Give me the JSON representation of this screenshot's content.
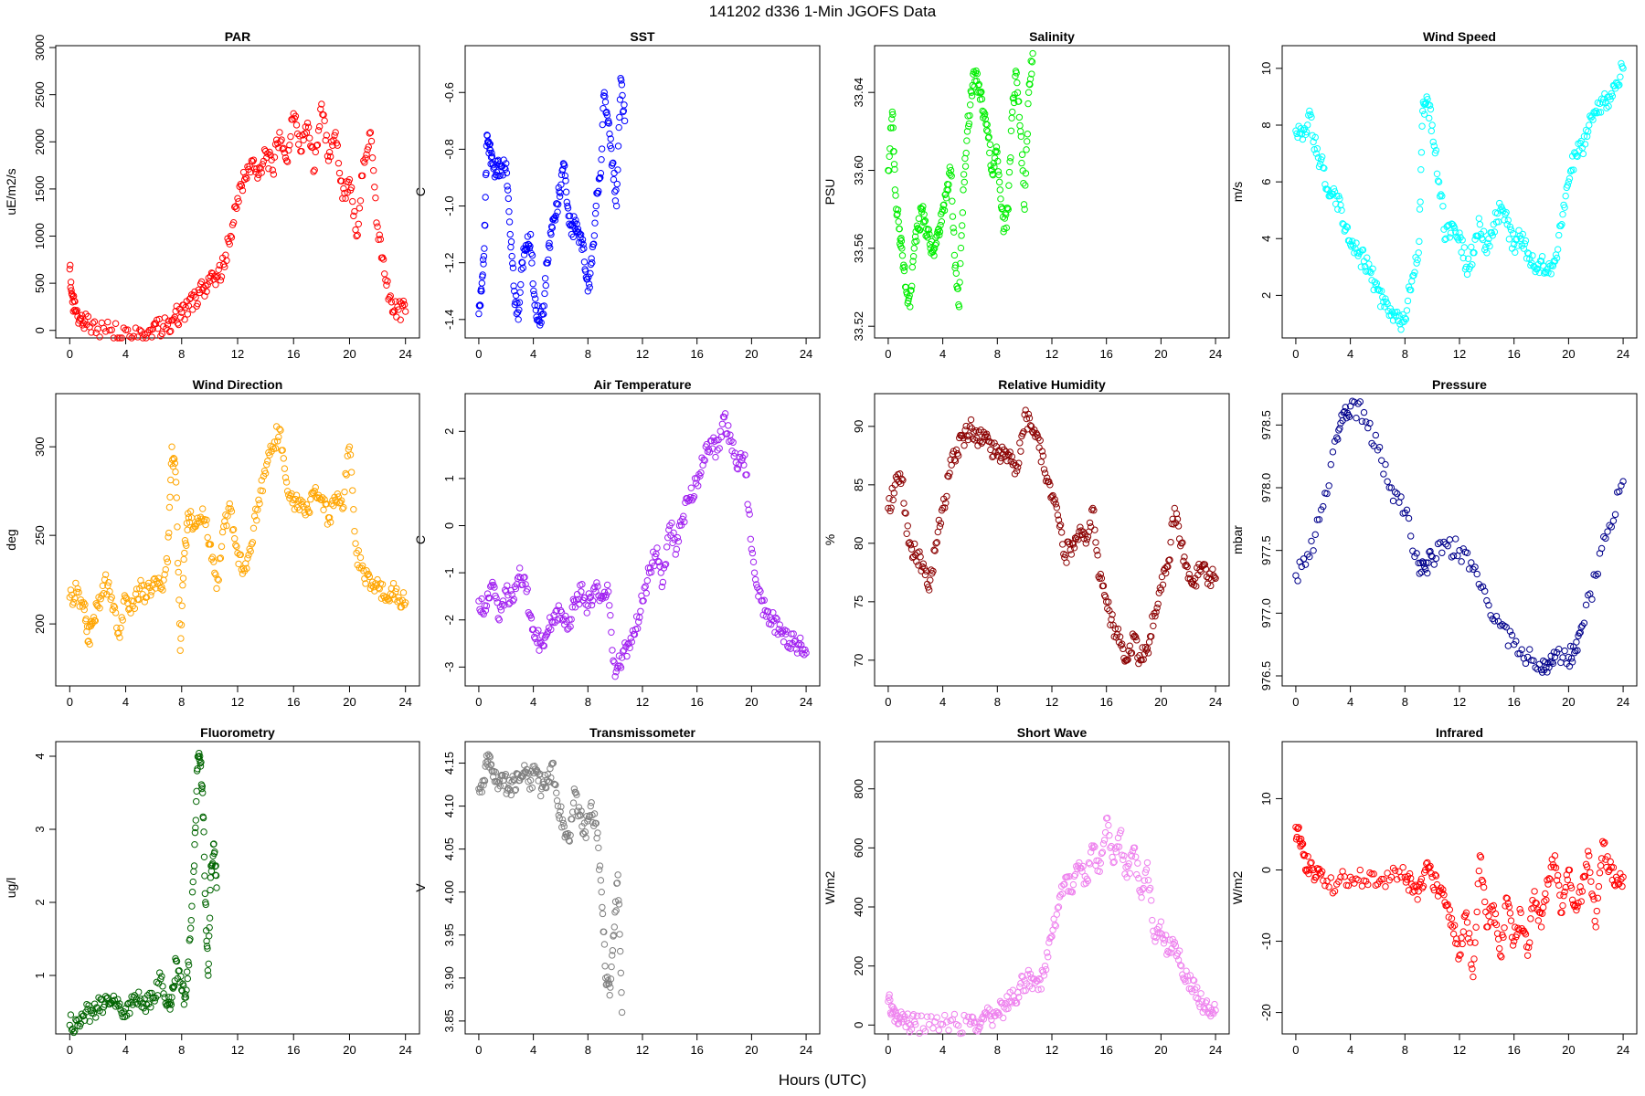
{
  "figure": {
    "title": "141202   d336   1-Min  JGOFS Data",
    "xlabel": "Hours (UTC)"
  },
  "chart_data": [
    {
      "type": "scatter",
      "title": "PAR",
      "ylabel": "uE/m2/s",
      "color": "#ff0000",
      "xlim": [
        -1,
        25
      ],
      "ylim": [
        -80,
        3020
      ],
      "xticks": [
        "0",
        "4",
        "8",
        "12",
        "16",
        "20",
        "24"
      ],
      "yticks": [
        "0",
        "500",
        "1000",
        "1500",
        "2000",
        "2500",
        "3000"
      ],
      "x": [
        0,
        0.2,
        0.4,
        0.8,
        1.2,
        2,
        3,
        4,
        5,
        5.8,
        6.3,
        7,
        7.5,
        8,
        8.5,
        9,
        9.5,
        10,
        10.5,
        11,
        11.5,
        12,
        12.5,
        13,
        13.5,
        14,
        14.5,
        15,
        15.5,
        16,
        16.5,
        17,
        17.5,
        18,
        18.5,
        19,
        19.5,
        20,
        20.5,
        21,
        21.5,
        22,
        22.5,
        23,
        23.5,
        24
      ],
      "y": [
        650,
        300,
        200,
        120,
        60,
        15,
        5,
        5,
        5,
        5,
        20,
        60,
        140,
        190,
        260,
        350,
        430,
        520,
        560,
        700,
        1000,
        1400,
        1600,
        1800,
        1650,
        1900,
        1700,
        2100,
        1800,
        2300,
        1900,
        2200,
        1700,
        2400,
        1800,
        2100,
        1400,
        1600,
        1000,
        1800,
        2100,
        1100,
        600,
        300,
        220,
        200
      ]
    },
    {
      "type": "scatter",
      "title": "SST",
      "ylabel": "C",
      "color": "#0000ff",
      "xlim": [
        -1,
        25
      ],
      "ylim": [
        -1.465,
        -0.435
      ],
      "xticks": [
        "0",
        "4",
        "8",
        "12",
        "16",
        "20",
        "24"
      ],
      "yticks": [
        "-1.4",
        "-1.2",
        "-1.0",
        "-0.8",
        "-0.6"
      ],
      "x": [
        0,
        0.2,
        0.4,
        0.6,
        0.8,
        1,
        1.3,
        1.6,
        2,
        2.3,
        2.6,
        2.9,
        3.2,
        3.5,
        3.8,
        4.1,
        4.4,
        4.7,
        5,
        5.3,
        5.6,
        5.9,
        6.2,
        6.5,
        6.8,
        7.1,
        7.4,
        7.7,
        8,
        8.3,
        8.6,
        8.9,
        9.2,
        9.5,
        9.8,
        10.1,
        10.4,
        10.7
      ],
      "y": [
        -1.38,
        -1.3,
        -1.15,
        -0.75,
        -0.8,
        -0.85,
        -0.88,
        -0.86,
        -0.85,
        -1.1,
        -1.3,
        -1.4,
        -1.2,
        -1.15,
        -1.1,
        -1.35,
        -1.4,
        -1.38,
        -1.2,
        -1.1,
        -1.05,
        -0.95,
        -0.85,
        -1.0,
        -1.1,
        -1.05,
        -1.1,
        -1.15,
        -1.3,
        -1.2,
        -1.0,
        -0.9,
        -0.6,
        -0.7,
        -0.85,
        -1.0,
        -0.55,
        -0.7
      ]
    },
    {
      "type": "scatter",
      "title": "Salinity",
      "ylabel": "PSU",
      "color": "#00ee00",
      "xlim": [
        -1,
        25
      ],
      "ylim": [
        33.514,
        33.664
      ],
      "xticks": [
        "0",
        "4",
        "8",
        "12",
        "16",
        "20",
        "24"
      ],
      "yticks": [
        "33.52",
        "33.56",
        "33.60",
        "33.64"
      ],
      "x": [
        0,
        0.3,
        0.5,
        0.8,
        1.0,
        1.3,
        1.6,
        1.9,
        2.2,
        2.5,
        2.8,
        3.1,
        3.4,
        3.7,
        4.0,
        4.3,
        4.6,
        4.9,
        5.2,
        5.5,
        5.8,
        6.1,
        6.4,
        6.7,
        7.0,
        7.3,
        7.6,
        7.9,
        8.2,
        8.5,
        8.8,
        9.1,
        9.4,
        9.7,
        10.0,
        10.3,
        10.6
      ],
      "y": [
        33.6,
        33.63,
        33.59,
        33.57,
        33.56,
        33.54,
        33.53,
        33.56,
        33.57,
        33.58,
        33.57,
        33.56,
        33.56,
        33.57,
        33.58,
        33.59,
        33.6,
        33.55,
        33.53,
        33.59,
        33.62,
        33.64,
        33.65,
        33.64,
        33.63,
        33.62,
        33.6,
        33.61,
        33.59,
        33.57,
        33.58,
        33.63,
        33.65,
        33.62,
        33.58,
        33.64,
        33.66
      ]
    },
    {
      "type": "scatter",
      "title": "Wind Speed",
      "ylabel": "m/s",
      "color": "#00ffff",
      "xlim": [
        -1,
        25
      ],
      "ylim": [
        0.5,
        10.8
      ],
      "xticks": [
        "0",
        "4",
        "8",
        "12",
        "16",
        "20",
        "24"
      ],
      "yticks": [
        "2",
        "4",
        "6",
        "8",
        "10"
      ],
      "x": [
        0,
        0.5,
        1,
        1.5,
        2,
        2.5,
        3,
        3.5,
        4,
        4.5,
        5,
        5.5,
        6,
        6.5,
        7,
        7.5,
        8,
        8.5,
        9,
        9.3,
        9.6,
        10,
        10.5,
        11,
        11.5,
        12,
        12.5,
        13,
        13.5,
        14,
        14.5,
        15,
        15.5,
        16,
        16.5,
        17,
        17.5,
        18,
        18.5,
        19,
        19.5,
        20,
        20.5,
        21,
        21.5,
        22,
        22.5,
        23,
        23.5,
        24
      ],
      "y": [
        7.8,
        7.5,
        8.5,
        7,
        6.5,
        5.5,
        5.5,
        4.5,
        3.8,
        3.5,
        3.2,
        2.8,
        2.2,
        1.6,
        1.3,
        1.1,
        1.2,
        2.5,
        3.5,
        8.5,
        9,
        8,
        6,
        4,
        4.5,
        4.2,
        3,
        3.5,
        4.5,
        3.5,
        4.5,
        5,
        4.5,
        3.8,
        4,
        3.5,
        3,
        3.2,
        2.8,
        3.2,
        4.5,
        6,
        7,
        7.2,
        8,
        8.5,
        8.8,
        9,
        9.5,
        10
      ]
    },
    {
      "type": "scatter",
      "title": "Wind Direction",
      "ylabel": "deg",
      "color": "#ffa500",
      "xlim": [
        -1,
        25
      ],
      "ylim": [
        165,
        330
      ],
      "xticks": [
        "0",
        "4",
        "8",
        "12",
        "16",
        "20",
        "24"
      ],
      "yticks": [
        "200",
        "250",
        "300"
      ],
      "x": [
        0,
        0.5,
        1,
        1.3,
        1.6,
        2,
        2.5,
        3,
        3.5,
        4,
        4.5,
        5,
        5.5,
        6,
        6.5,
        7,
        7.3,
        7.6,
        7.9,
        8.2,
        8.5,
        9,
        9.5,
        10,
        10.5,
        11,
        11.5,
        12,
        12.5,
        13,
        13.5,
        14,
        14.5,
        15,
        15.5,
        16,
        16.5,
        17,
        17.5,
        18,
        18.5,
        19,
        19.5,
        20,
        20.5,
        21,
        21.5,
        22,
        22.5,
        23,
        23.5,
        24
      ],
      "y": [
        215,
        218,
        212,
        190,
        200,
        210,
        225,
        215,
        195,
        215,
        210,
        220,
        215,
        225,
        220,
        235,
        300,
        280,
        185,
        240,
        260,
        255,
        265,
        245,
        220,
        255,
        265,
        240,
        230,
        245,
        270,
        285,
        300,
        310,
        280,
        270,
        270,
        265,
        275,
        270,
        260,
        270,
        265,
        300,
        240,
        230,
        220,
        225,
        215,
        220,
        215,
        212
      ]
    },
    {
      "type": "scatter",
      "title": "Air Temperature",
      "ylabel": "C",
      "color": "#a020f0",
      "xlim": [
        -1,
        25
      ],
      "ylim": [
        -3.4,
        2.8
      ],
      "xticks": [
        "0",
        "4",
        "8",
        "12",
        "16",
        "20",
        "24"
      ],
      "yticks": [
        "-3",
        "-2",
        "-1",
        "0",
        "1",
        "2"
      ],
      "x": [
        0,
        0.5,
        1,
        1.5,
        2,
        2.5,
        3,
        3.5,
        4,
        4.5,
        5,
        5.5,
        6,
        6.5,
        7,
        7.5,
        8,
        8.5,
        9,
        9.5,
        10,
        10.5,
        11,
        11.5,
        12,
        12.5,
        13,
        13.5,
        14,
        14.5,
        15,
        15.5,
        16,
        16.5,
        17,
        17.5,
        18,
        18.5,
        19,
        19.5,
        20,
        20.5,
        21,
        21.5,
        22,
        22.5,
        23,
        23.5,
        24
      ],
      "y": [
        -1.6,
        -1.8,
        -1.2,
        -2,
        -1.4,
        -1.6,
        -0.9,
        -1.4,
        -2.2,
        -2.5,
        -2.3,
        -1.9,
        -1.8,
        -2.2,
        -1.6,
        -1.4,
        -1.7,
        -1.3,
        -1.5,
        -1.4,
        -3.2,
        -2.8,
        -2.5,
        -2.2,
        -1.6,
        -1.0,
        -0.6,
        -1.2,
        0.0,
        -0.5,
        0.2,
        0.6,
        1.0,
        1.4,
        1.8,
        1.6,
        2.3,
        1.8,
        1.2,
        1.5,
        -0.5,
        -1.5,
        -1.8,
        -2.0,
        -2.2,
        -2.3,
        -2.5,
        -2.5,
        -2.7
      ]
    },
    {
      "type": "scatter",
      "title": "Relative Humidity",
      "ylabel": "%",
      "color": "#8b0000",
      "xlim": [
        -1,
        25
      ],
      "ylim": [
        67.8,
        92.8
      ],
      "xticks": [
        "0",
        "4",
        "8",
        "12",
        "16",
        "20",
        "24"
      ],
      "yticks": [
        "70",
        "75",
        "80",
        "85",
        "90"
      ],
      "x": [
        0,
        0.5,
        1,
        1.5,
        2,
        2.5,
        3,
        3.5,
        4,
        4.5,
        5,
        5.5,
        6,
        6.5,
        7,
        7.5,
        8,
        8.5,
        9,
        9.5,
        10,
        10.5,
        11,
        11.5,
        12,
        12.5,
        13,
        13.5,
        14,
        14.5,
        15,
        15.5,
        16,
        16.5,
        17,
        17.5,
        18,
        18.5,
        19,
        19.5,
        20,
        20.5,
        21,
        21.5,
        22,
        22.5,
        23,
        23.5,
        24
      ],
      "y": [
        83,
        85,
        85.5,
        80,
        79,
        78,
        76,
        80,
        83,
        86,
        88,
        89,
        90,
        89,
        89.5,
        88,
        87.5,
        88,
        87,
        86.5,
        91,
        90,
        89,
        86,
        84,
        82,
        79,
        80,
        81,
        80,
        83,
        77,
        75,
        73,
        72,
        70,
        72,
        70,
        71,
        74,
        76,
        78,
        83,
        80,
        77,
        77,
        78,
        77,
        77
      ]
    },
    {
      "type": "scatter",
      "title": "Pressure",
      "ylabel": "mbar",
      "color": "#00008b",
      "xlim": [
        -1,
        25
      ],
      "ylim": [
        976.42,
        978.75
      ],
      "xticks": [
        "0",
        "4",
        "8",
        "12",
        "16",
        "20",
        "24"
      ],
      "yticks": [
        "976.5",
        "977.0",
        "977.5",
        "978.0",
        "978.5"
      ],
      "x": [
        0,
        1,
        2,
        3,
        3.5,
        4,
        5,
        6,
        7,
        8,
        9,
        9.5,
        10,
        11,
        12,
        13,
        14,
        15,
        16,
        17,
        18,
        18.5,
        19,
        20,
        20.5,
        21,
        22,
        23,
        24
      ],
      "y": [
        977.3,
        977.45,
        977.85,
        978.4,
        978.6,
        978.65,
        978.6,
        978.3,
        978.0,
        977.8,
        977.4,
        977.35,
        977.45,
        977.55,
        977.5,
        977.35,
        977.1,
        976.9,
        976.75,
        976.65,
        976.55,
        976.6,
        976.65,
        976.65,
        976.7,
        976.9,
        977.3,
        977.7,
        978.05
      ]
    },
    {
      "type": "scatter",
      "title": "Fluorometry",
      "ylabel": "ug/l",
      "color": "#006400",
      "xlim": [
        -1,
        25
      ],
      "ylim": [
        0.2,
        4.2
      ],
      "xticks": [
        "0",
        "4",
        "8",
        "12",
        "16",
        "20",
        "24"
      ],
      "yticks": [
        "1",
        "2",
        "3",
        "4"
      ],
      "x": [
        0,
        0.5,
        1,
        1.5,
        2,
        2.5,
        3,
        3.5,
        4,
        4.5,
        5,
        5.5,
        6,
        6.5,
        7,
        7.3,
        7.6,
        8,
        8.3,
        8.6,
        8.9,
        9.1,
        9.3,
        9.5,
        9.7,
        9.9,
        10.1,
        10.3,
        10.5
      ],
      "y": [
        0.32,
        0.38,
        0.45,
        0.52,
        0.55,
        0.6,
        0.62,
        0.58,
        0.55,
        0.6,
        0.65,
        0.6,
        0.7,
        0.95,
        0.6,
        0.7,
        1.2,
        0.8,
        0.7,
        1.5,
        2.5,
        3.8,
        4.0,
        3.5,
        2.0,
        1.0,
        2.5,
        2.8,
        2.2
      ]
    },
    {
      "type": "scatter",
      "title": "Transmissometer",
      "ylabel": "V",
      "color": "#808080",
      "xlim": [
        -1,
        25
      ],
      "ylim": [
        3.835,
        4.175
      ],
      "xticks": [
        "0",
        "4",
        "8",
        "12",
        "16",
        "20",
        "24"
      ],
      "yticks": [
        "3.85",
        "3.90",
        "3.95",
        "4.00",
        "4.05",
        "4.10",
        "4.15"
      ],
      "x": [
        0,
        0.4,
        0.7,
        1,
        1.4,
        1.8,
        2.2,
        2.6,
        3,
        3.4,
        3.8,
        4.2,
        4.6,
        5,
        5.4,
        5.8,
        6.2,
        6.6,
        7,
        7.4,
        7.8,
        8.2,
        8.6,
        9,
        9.3,
        9.6,
        9.9,
        10.2,
        10.5
      ],
      "y": [
        4.12,
        4.13,
        4.16,
        4.14,
        4.12,
        4.13,
        4.12,
        4.13,
        4.13,
        4.14,
        4.13,
        4.14,
        4.12,
        4.13,
        4.15,
        4.1,
        4.08,
        4.06,
        4.12,
        4.09,
        4.07,
        4.1,
        4.08,
        4.0,
        3.9,
        3.88,
        3.95,
        4.02,
        3.86
      ]
    },
    {
      "type": "scatter",
      "title": "Short Wave",
      "ylabel": "W/m2",
      "color": "#ee82ee",
      "xlim": [
        -1,
        25
      ],
      "ylim": [
        -30,
        960
      ],
      "xticks": [
        "0",
        "4",
        "8",
        "12",
        "16",
        "20",
        "24"
      ],
      "yticks": [
        "0",
        "200",
        "400",
        "600",
        "800"
      ],
      "x": [
        0,
        0.3,
        0.6,
        1,
        1.5,
        2,
        3,
        4,
        5,
        6,
        6.5,
        7,
        7.5,
        8,
        8.5,
        9,
        9.5,
        10,
        10.5,
        11,
        11.5,
        12,
        12.5,
        13,
        13.5,
        14,
        14.5,
        15,
        15.5,
        16,
        16.5,
        17,
        17.5,
        18,
        18.5,
        19,
        19.5,
        20,
        20.5,
        21,
        21.5,
        22,
        22.5,
        23,
        23.5,
        24
      ],
      "y": [
        80,
        40,
        20,
        10,
        5,
        2,
        2,
        2,
        2,
        3,
        10,
        20,
        30,
        40,
        60,
        80,
        110,
        150,
        160,
        120,
        200,
        300,
        400,
        500,
        450,
        550,
        480,
        600,
        520,
        700,
        550,
        650,
        500,
        600,
        450,
        550,
        300,
        350,
        250,
        280,
        200,
        150,
        120,
        80,
        60,
        50
      ]
    },
    {
      "type": "scatter",
      "title": "Infrared",
      "ylabel": "W/m2",
      "color": "#ff0000",
      "xlim": [
        -1,
        25
      ],
      "ylim": [
        -23,
        18
      ],
      "xticks": [
        "0",
        "4",
        "8",
        "12",
        "16",
        "20",
        "24"
      ],
      "yticks": [
        "-20",
        "-10",
        "0",
        "10"
      ],
      "x": [
        0,
        0.3,
        0.6,
        1,
        1.5,
        2,
        3,
        4,
        5,
        6,
        7,
        8,
        8.5,
        9,
        9.5,
        10,
        10.5,
        11,
        11.5,
        12,
        12.5,
        13,
        13.5,
        14,
        14.5,
        15,
        15.5,
        16,
        16.5,
        17,
        17.5,
        18,
        18.5,
        19,
        19.5,
        20,
        20.5,
        21,
        21.5,
        22,
        22.5,
        23,
        23.5,
        24
      ],
      "y": [
        6,
        4,
        2,
        0,
        -1,
        -1.5,
        -2,
        -1,
        -1.5,
        -2,
        -1,
        -1,
        -2,
        -3,
        0,
        -1,
        -3,
        -5,
        -8,
        -12,
        -6,
        -15,
        2,
        -8,
        -5,
        -12,
        -4,
        -10,
        -6,
        -12,
        -3,
        -8,
        -2,
        2,
        -6,
        0,
        -5,
        -3,
        2,
        -8,
        4,
        0,
        -1,
        -1
      ]
    }
  ]
}
